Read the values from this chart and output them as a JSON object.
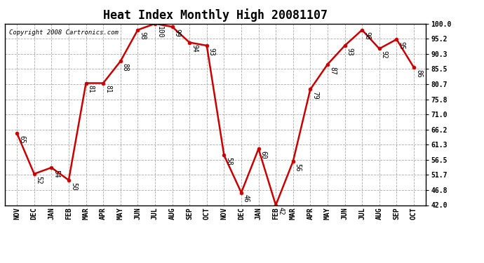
{
  "title": "Heat Index Monthly High 20081107",
  "copyright": "Copyright 2008 Cartronics.com",
  "months": [
    "NOV",
    "DEC",
    "JAN",
    "FEB",
    "MAR",
    "APR",
    "MAY",
    "JUN",
    "JUL",
    "AUG",
    "SEP",
    "OCT",
    "NOV",
    "DEC",
    "JAN",
    "FEB",
    "MAR",
    "APR",
    "MAY",
    "JUN",
    "JUL",
    "AUG",
    "SEP",
    "OCT"
  ],
  "values": [
    65,
    52,
    54,
    50,
    81,
    81,
    88,
    98,
    100,
    99,
    94,
    93,
    58,
    46,
    60,
    42,
    56,
    79,
    87,
    93,
    98,
    92,
    95,
    86
  ],
  "line_color": "#cc0000",
  "marker_color": "#cc0000",
  "grid_color": "#aaaaaa",
  "background_color": "#ffffff",
  "ylim_min": 42.0,
  "ylim_max": 100.0,
  "yticks": [
    42.0,
    46.8,
    51.7,
    56.5,
    61.3,
    66.2,
    71.0,
    75.8,
    80.7,
    85.5,
    90.3,
    95.2,
    100.0
  ],
  "title_fontsize": 12,
  "label_fontsize": 7,
  "tick_fontsize": 7,
  "copyright_fontsize": 6.5
}
